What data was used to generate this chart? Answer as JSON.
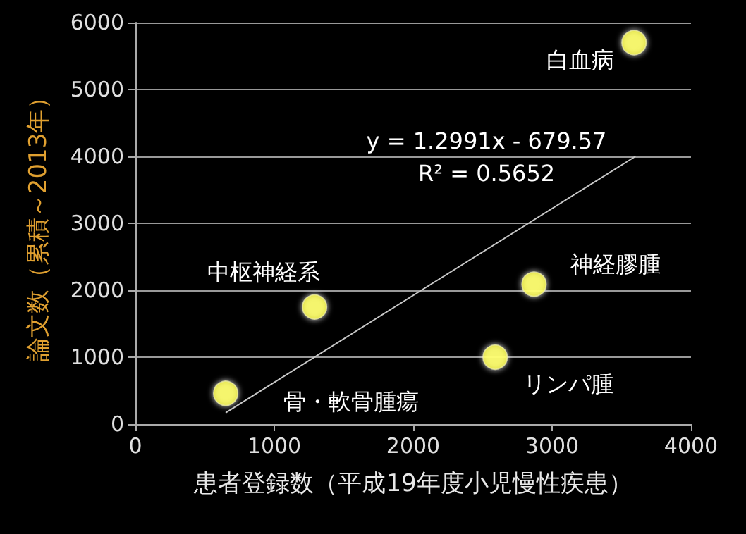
{
  "chart_data": {
    "type": "scatter",
    "xlabel": "患者登録数（平成19年度小児慢性疾患）",
    "ylabel": "論文数（累積～2013年）",
    "series": [
      {
        "marker": "circle",
        "color": "#ffff00",
        "x": [
          650,
          1290,
          2590,
          2870,
          3590
        ],
        "values": [
          460,
          1750,
          1000,
          2090,
          5700
        ]
      },
      {
        "type": "line",
        "color": "#c8c8c8",
        "x": [
          650,
          3600
        ],
        "values": [
          170,
          4000
        ]
      }
    ],
    "annotations": [
      {
        "text": "骨・軟骨腫瘍",
        "x": 650,
        "y": 460
      },
      {
        "text": "中枢神経系",
        "x": 1290,
        "y": 1750
      },
      {
        "text": "リンパ腫",
        "x": 2590,
        "y": 1000
      },
      {
        "text": "神経膠腫",
        "x": 2870,
        "y": 2090
      },
      {
        "text": "白血病",
        "x": 3590,
        "y": 5700
      },
      "y = 1.2991x - 679.57",
      "R² = 0.5652"
    ],
    "xlim": [
      0,
      4000
    ],
    "xticks": [
      0,
      1000,
      2000,
      3000,
      4000
    ],
    "ylim": [
      0,
      6000
    ],
    "yticks": [
      0,
      1000,
      2000,
      3000,
      4000,
      5000,
      6000
    ],
    "grid": "y"
  }
}
